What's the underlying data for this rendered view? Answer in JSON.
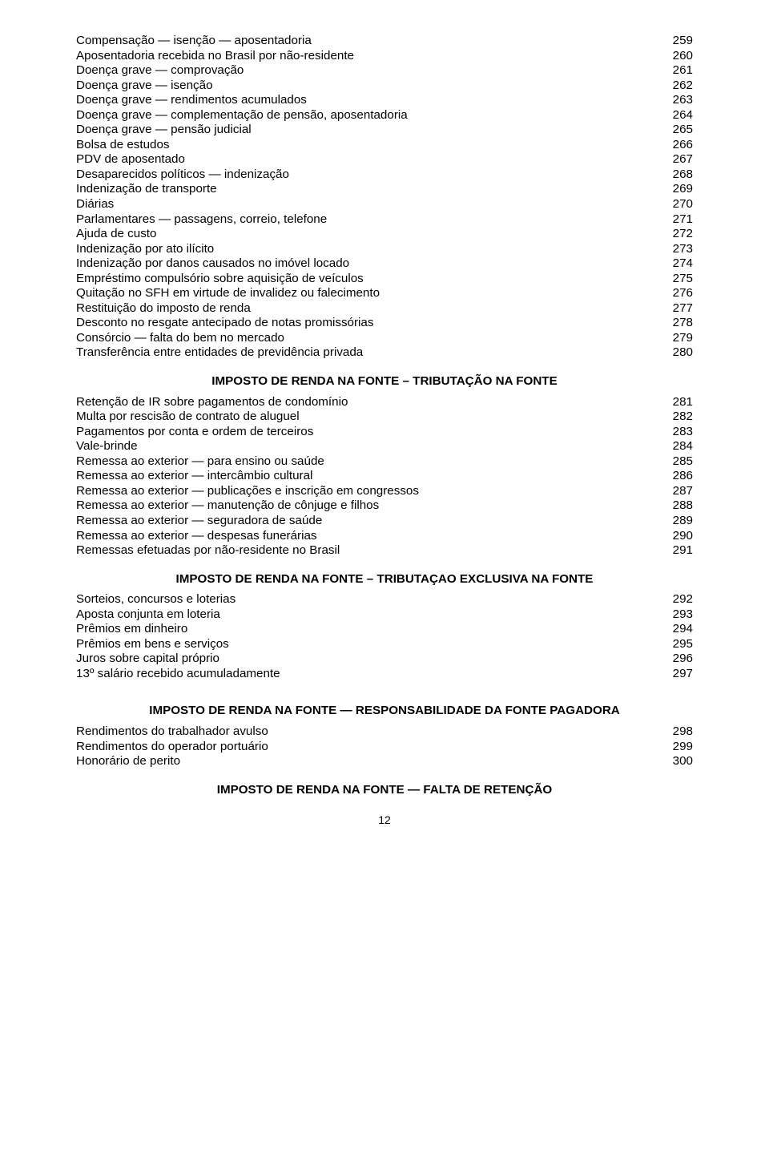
{
  "text_color": "#000000",
  "bg_color": "#ffffff",
  "font_family": "Arial",
  "base_fontsize_pt": 11.5,
  "page_number": "12",
  "sections": [
    {
      "heading": null,
      "items": [
        {
          "label": "Compensação — isenção — aposentadoria",
          "num": "259"
        },
        {
          "label": "Aposentadoria recebida no Brasil por não-residente",
          "num": "260"
        },
        {
          "label": "Doença grave — comprovação",
          "num": "261"
        },
        {
          "label": "Doença grave — isenção",
          "num": "262"
        },
        {
          "label": "Doença grave — rendimentos acumulados",
          "num": "263"
        },
        {
          "label": "Doença grave — complementação de pensão, aposentadoria",
          "num": "264"
        },
        {
          "label": "Doença grave — pensão judicial",
          "num": "265"
        },
        {
          "label": "Bolsa de estudos",
          "num": "266"
        },
        {
          "label": "PDV de aposentado",
          "num": "267"
        },
        {
          "label": "Desaparecidos políticos — indenização",
          "num": "268"
        },
        {
          "label": "Indenização de transporte",
          "num": "269"
        },
        {
          "label": "Diárias",
          "num": "270"
        },
        {
          "label": "Parlamentares — passagens, correio, telefone",
          "num": "271"
        },
        {
          "label": "Ajuda de custo",
          "num": "272"
        },
        {
          "label": "Indenização por ato ilícito",
          "num": "273"
        },
        {
          "label": "Indenização por danos causados no imóvel locado",
          "num": "274"
        },
        {
          "label": "Empréstimo compulsório sobre aquisição de veículos",
          "num": "275"
        },
        {
          "label": "Quitação no SFH em virtude de invalidez ou falecimento",
          "num": "276"
        },
        {
          "label": "Restituição do imposto de renda",
          "num": "277"
        },
        {
          "label": "Desconto no resgate antecipado de notas promissórias",
          "num": "278"
        },
        {
          "label": "Consórcio — falta do bem no mercado",
          "num": "279"
        },
        {
          "label": "Transferência entre entidades de previdência privada",
          "num": "280"
        }
      ]
    },
    {
      "heading": "IMPOSTO DE RENDA NA FONTE – TRIBUTAÇÃO NA FONTE",
      "items": [
        {
          "label": "Retenção de IR sobre pagamentos de condomínio",
          "num": "281"
        },
        {
          "label": "Multa por rescisão de contrato de aluguel",
          "num": "282"
        },
        {
          "label": "Pagamentos por conta e ordem de terceiros",
          "num": "283"
        },
        {
          "label": "Vale-brinde",
          "num": "284"
        },
        {
          "label": "Remessa ao exterior — para ensino ou saúde",
          "num": "285"
        },
        {
          "label": "Remessa ao exterior — intercâmbio cultural",
          "num": "286"
        },
        {
          "label": "Remessa ao exterior — publicações e inscrição em congressos",
          "num": "287"
        },
        {
          "label": "Remessa ao exterior — manutenção de cônjuge e filhos",
          "num": "288"
        },
        {
          "label": "Remessa ao exterior — seguradora de saúde",
          "num": "289"
        },
        {
          "label": "Remessa ao exterior — despesas funerárias",
          "num": "290"
        },
        {
          "label": "Remessas efetuadas por não-residente no Brasil",
          "num": "291"
        }
      ]
    },
    {
      "heading": "IMPOSTO DE RENDA NA FONTE – TRIBUTAÇAO EXCLUSIVA NA FONTE",
      "items": [
        {
          "label": "Sorteios, concursos e loterias",
          "num": "292"
        },
        {
          "label": "Aposta conjunta em loteria",
          "num": "293"
        },
        {
          "label": "Prêmios em dinheiro",
          "num": "294"
        },
        {
          "label": "Prêmios em bens e serviços",
          "num": "295"
        },
        {
          "label": "Juros sobre capital próprio",
          "num": "296"
        },
        {
          "label": "13º salário recebido acumuladamente",
          "num": "297"
        }
      ]
    },
    {
      "heading": "IMPOSTO DE RENDA NA FONTE — RESPONSABILIDADE DA FONTE PAGADORA",
      "wide": true,
      "items": [
        {
          "label": "Rendimentos do trabalhador avulso",
          "num": "298"
        },
        {
          "label": "Rendimentos do operador portuário",
          "num": "299"
        },
        {
          "label": "Honorário de perito",
          "num": "300"
        }
      ]
    },
    {
      "heading": "IMPOSTO DE RENDA NA FONTE — FALTA DE RETENÇÃO",
      "items": []
    }
  ]
}
